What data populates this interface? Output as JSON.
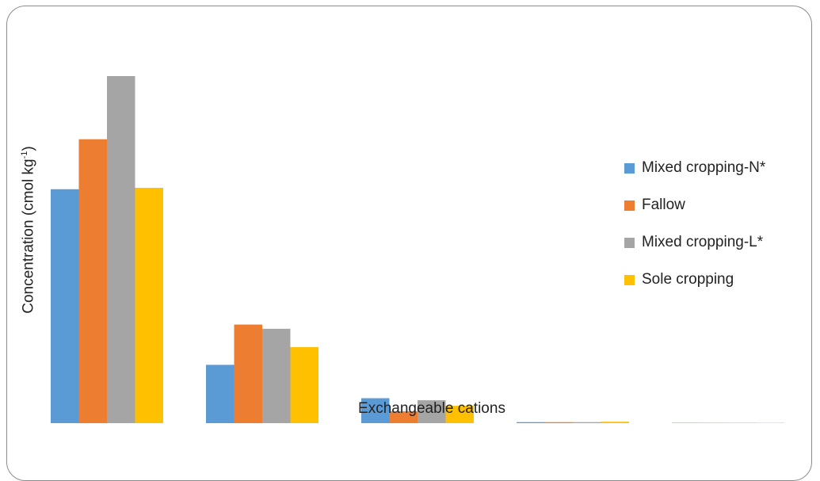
{
  "chart_data": {
    "type": "bar",
    "title": "",
    "xlabel": "Exchangeable cations",
    "ylabel": {
      "prefix": "Concentration (cmol kg",
      "superscript": "-1",
      "suffix": ")"
    },
    "categories": [
      "",
      "",
      "",
      "",
      ""
    ],
    "ylim": [
      0,
      100
    ],
    "grid": false,
    "axis_ticks_shown": false,
    "legend_position": "right",
    "series": [
      {
        "name": "Mixed cropping-N*",
        "color": "#5b9bd5",
        "values": [
          67.4,
          16.8,
          7.2,
          0.3,
          0.1
        ]
      },
      {
        "name": "Fallow",
        "color": "#ed7d31",
        "values": [
          81.8,
          28.4,
          3.4,
          0.3,
          0.1
        ]
      },
      {
        "name": "Mixed cropping-L*",
        "color": "#a5a5a5",
        "values": [
          100,
          27.2,
          6.6,
          0.3,
          0.1
        ]
      },
      {
        "name": "Sole cropping",
        "color": "#ffc000",
        "values": [
          67.8,
          21.9,
          5.0,
          0.4,
          0.1
        ]
      }
    ]
  }
}
